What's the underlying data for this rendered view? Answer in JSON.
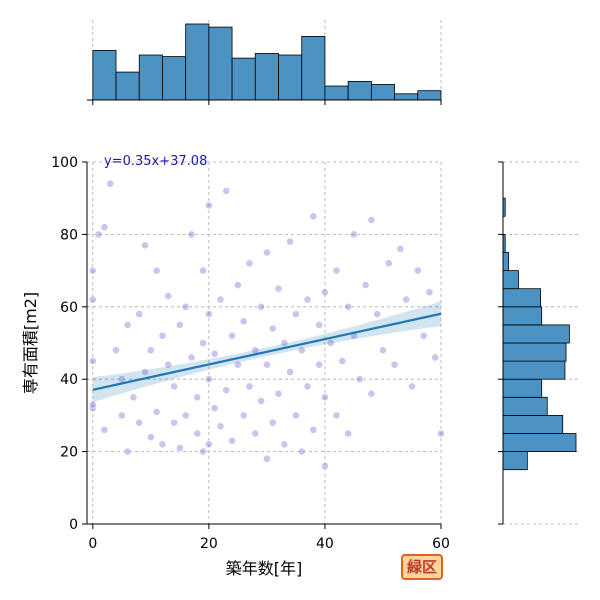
{
  "chart_data": {
    "type": "scatter",
    "xlabel": "築年数[年]",
    "ylabel": "専有面積[m2]",
    "xlim": [
      -1,
      60
    ],
    "ylim": [
      0,
      100
    ],
    "xticks": [
      0,
      20,
      40,
      60
    ],
    "yticks": [
      0,
      20,
      40,
      60,
      80,
      100
    ],
    "grid": true,
    "point_color": "#6a5acd",
    "line_color": "#1f77b4",
    "hist_color": "#4c92c3",
    "regression": {
      "slope": 0.35,
      "intercept": 37.08,
      "label": "y=0.35x+37.08",
      "x_range": [
        0,
        60
      ]
    },
    "x_hist": {
      "bins": [
        0,
        4,
        8,
        12,
        16,
        20,
        24,
        28,
        32,
        36,
        40,
        44,
        48,
        52,
        56,
        60
      ],
      "counts": [
        64,
        36,
        58,
        56,
        98,
        94,
        54,
        60,
        58,
        82,
        18,
        24,
        20,
        8,
        12
      ]
    },
    "y_hist": {
      "bins": [
        15,
        20,
        25,
        30,
        35,
        40,
        45,
        50,
        55,
        60,
        65,
        70,
        75,
        80,
        85,
        90,
        95,
        100
      ],
      "counts": [
        22,
        66,
        54,
        40,
        35,
        56,
        57,
        60,
        35,
        34,
        14,
        5,
        2,
        0,
        2,
        0,
        0
      ]
    },
    "points": [
      [
        0,
        32
      ],
      [
        0,
        33
      ],
      [
        0,
        45
      ],
      [
        0,
        62
      ],
      [
        0,
        70
      ],
      [
        1,
        80
      ],
      [
        2,
        82
      ],
      [
        2,
        26
      ],
      [
        3,
        94
      ],
      [
        4,
        48
      ],
      [
        5,
        40
      ],
      [
        5,
        30
      ],
      [
        6,
        55
      ],
      [
        6,
        20
      ],
      [
        7,
        35
      ],
      [
        8,
        58
      ],
      [
        8,
        28
      ],
      [
        9,
        42
      ],
      [
        9,
        77
      ],
      [
        10,
        24
      ],
      [
        10,
        48
      ],
      [
        11,
        31
      ],
      [
        11,
        70
      ],
      [
        12,
        52
      ],
      [
        12,
        22
      ],
      [
        13,
        44
      ],
      [
        13,
        63
      ],
      [
        14,
        28
      ],
      [
        14,
        38
      ],
      [
        15,
        55
      ],
      [
        15,
        21
      ],
      [
        16,
        30
      ],
      [
        16,
        60
      ],
      [
        17,
        46
      ],
      [
        17,
        80
      ],
      [
        18,
        35
      ],
      [
        18,
        25
      ],
      [
        19,
        50
      ],
      [
        19,
        20
      ],
      [
        19,
        70
      ],
      [
        20,
        22
      ],
      [
        20,
        40
      ],
      [
        20,
        58
      ],
      [
        20,
        88
      ],
      [
        21,
        32
      ],
      [
        21,
        47
      ],
      [
        22,
        27
      ],
      [
        22,
        62
      ],
      [
        23,
        37
      ],
      [
        23,
        92
      ],
      [
        24,
        52
      ],
      [
        24,
        23
      ],
      [
        25,
        44
      ],
      [
        25,
        66
      ],
      [
        26,
        30
      ],
      [
        26,
        56
      ],
      [
        27,
        38
      ],
      [
        27,
        72
      ],
      [
        28,
        25
      ],
      [
        28,
        48
      ],
      [
        29,
        60
      ],
      [
        29,
        34
      ],
      [
        30,
        18
      ],
      [
        30,
        44
      ],
      [
        30,
        75
      ],
      [
        31,
        28
      ],
      [
        31,
        54
      ],
      [
        32,
        65
      ],
      [
        32,
        36
      ],
      [
        33,
        50
      ],
      [
        33,
        22
      ],
      [
        34,
        78
      ],
      [
        34,
        42
      ],
      [
        35,
        30
      ],
      [
        35,
        58
      ],
      [
        36,
        48
      ],
      [
        36,
        20
      ],
      [
        37,
        62
      ],
      [
        37,
        38
      ],
      [
        38,
        85
      ],
      [
        38,
        26
      ],
      [
        39,
        55
      ],
      [
        39,
        44
      ],
      [
        40,
        16
      ],
      [
        40,
        64
      ],
      [
        40,
        35
      ],
      [
        41,
        50
      ],
      [
        42,
        30
      ],
      [
        42,
        70
      ],
      [
        43,
        45
      ],
      [
        44,
        60
      ],
      [
        44,
        25
      ],
      [
        45,
        80
      ],
      [
        45,
        52
      ],
      [
        46,
        40
      ],
      [
        47,
        66
      ],
      [
        48,
        84
      ],
      [
        48,
        36
      ],
      [
        49,
        58
      ],
      [
        50,
        48
      ],
      [
        51,
        72
      ],
      [
        52,
        44
      ],
      [
        53,
        76
      ],
      [
        54,
        62
      ],
      [
        55,
        38
      ],
      [
        56,
        70
      ],
      [
        57,
        52
      ],
      [
        58,
        64
      ],
      [
        59,
        46
      ],
      [
        60,
        25
      ]
    ]
  },
  "badge": {
    "label": "緑区"
  }
}
